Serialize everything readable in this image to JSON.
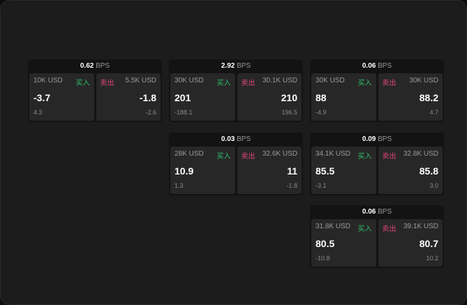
{
  "unit_bps": "BPS",
  "buy_label": "买入",
  "sell_label": "卖出",
  "colors": {
    "buy": "#2fbf6a",
    "sell": "#e0457b"
  },
  "cards": [
    {
      "spread": "0.62",
      "bid_size": "10K USD",
      "bid": "-3.7",
      "bid_change": "4.3",
      "ask_size": "5.5K USD",
      "ask": "-1.8",
      "ask_change": "-2.6"
    },
    {
      "spread": "2.92",
      "bid_size": "30K USD",
      "bid": "201",
      "bid_change": "-188.1",
      "ask_size": "30.1K USD",
      "ask": "210",
      "ask_change": "196.5"
    },
    {
      "spread": "0.06",
      "bid_size": "30K USD",
      "bid": "88",
      "bid_change": "-4.9",
      "ask_size": "30K USD",
      "ask": "88.2",
      "ask_change": "4.7"
    },
    {
      "spread": "0.03",
      "bid_size": "28K USD",
      "bid": "10.9",
      "bid_change": "1.3",
      "ask_size": "32.6K USD",
      "ask": "11",
      "ask_change": "-1.8"
    },
    {
      "spread": "0.09",
      "bid_size": "34.1K USD",
      "bid": "85.5",
      "bid_change": "-3.1",
      "ask_size": "32.8K USD",
      "ask": "85.8",
      "ask_change": "3.0"
    },
    {
      "spread": "0.06",
      "bid_size": "31.8K USD",
      "bid": "80.5",
      "bid_change": "-10.8",
      "ask_size": "39.1K USD",
      "ask": "80.7",
      "ask_change": "10.2"
    }
  ]
}
